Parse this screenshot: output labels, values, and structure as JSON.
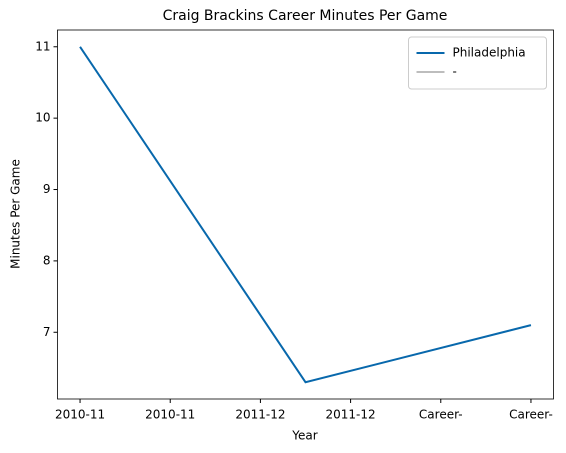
{
  "chart_data": {
    "type": "line",
    "title": "Craig Brackins Career Minutes Per Game",
    "xlabel": "Year",
    "ylabel": "Minutes Per Game",
    "x": [
      0,
      2.5,
      5
    ],
    "series": [
      {
        "name": "Philadelphia",
        "color": "#0868ac",
        "values": [
          11,
          6.3,
          7.1
        ]
      },
      {
        "name": "-",
        "color": "#bdbdbd",
        "values": [
          null,
          null,
          null
        ]
      }
    ],
    "xlim": [
      -0.25,
      5.25
    ],
    "xticks": [
      {
        "value": 0,
        "label": "2010-11"
      },
      {
        "value": 1,
        "label": "2010-11"
      },
      {
        "value": 2,
        "label": "2011-12"
      },
      {
        "value": 3,
        "label": "2011-12"
      },
      {
        "value": 4,
        "label": "Career-"
      },
      {
        "value": 5,
        "label": "Career-"
      }
    ],
    "ylim": [
      6.065,
      11.235
    ],
    "yticks": [
      7,
      8,
      9,
      10,
      11
    ],
    "grid": false,
    "legend": "upper right"
  }
}
